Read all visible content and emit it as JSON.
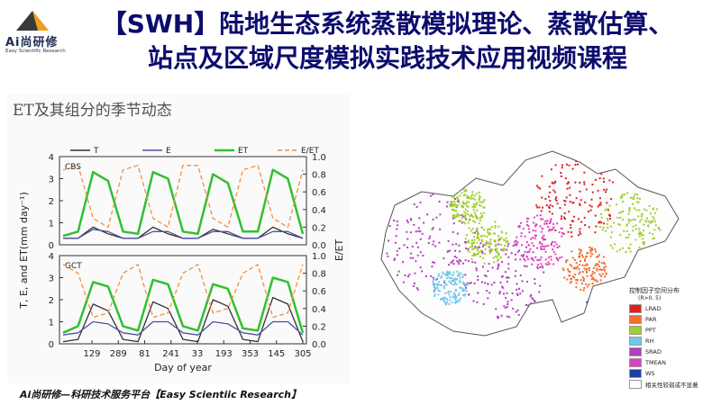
{
  "logo": {
    "brand": "Ai尚研修",
    "subtitle": "Easy Scientific Research"
  },
  "title": {
    "line1": "【SWH】陆地生态系统蒸散模拟理论、蒸散估算、",
    "line2": "站点及区域尺度模拟实践技术应用视频课程"
  },
  "figure_left": {
    "title": "ET及其组分的季节动态",
    "legend": [
      "T",
      "E",
      "ET",
      "E/ET"
    ],
    "panel_labels": [
      "CBS",
      "GCT"
    ],
    "ylabel_left": "T, E, and ET(mm day⁻¹)",
    "ylabel_right": "E/ET",
    "xlabel": "Day of year",
    "x_ticks": [
      "129",
      "289",
      "81",
      "241",
      "33",
      "193",
      "353",
      "145",
      "305"
    ],
    "y_ticks_left": [
      "0",
      "1",
      "2",
      "3",
      "4"
    ],
    "y_ticks_right": [
      "0.0",
      "0.2",
      "0.4",
      "0.6",
      "0.8",
      "1.0"
    ]
  },
  "figure_right": {
    "legend_title": "控制因子空间分布",
    "legend_subtitle": "(R>0. 5)",
    "legend_items": [
      {
        "label": "LRAD",
        "color": "#e02020"
      },
      {
        "label": "PAR",
        "color": "#f07030"
      },
      {
        "label": "PPT",
        "color": "#a0d030"
      },
      {
        "label": "RH",
        "color": "#70c8e8"
      },
      {
        "label": "SRAD",
        "color": "#b040c0"
      },
      {
        "label": "TMEAN",
        "color": "#e040c0"
      },
      {
        "label": "WS",
        "color": "#2040a0"
      },
      {
        "label": "相关性较弱或不显著",
        "color": "#ffffff"
      }
    ]
  },
  "chart_data": {
    "type": "line",
    "title": "ET及其组分的季节动态",
    "xlabel": "Day of year",
    "ylabel": "T, E, and ET(mm day⁻¹)",
    "ylabel_right": "E/ET",
    "ylim": [
      0,
      4
    ],
    "ylim_right": [
      0,
      1.0
    ],
    "x_ticks": [
      "129",
      "289",
      "81",
      "241",
      "33",
      "193",
      "353",
      "145",
      "305"
    ],
    "panels": [
      {
        "name": "CBS",
        "series": [
          {
            "name": "T",
            "values": [
              0.3,
              0.3,
              0.8,
              0.5,
              0.3,
              0.3,
              0.8,
              0.5,
              0.3,
              0.3,
              0.7,
              0.5,
              0.3,
              0.3,
              0.8,
              0.5,
              0.3
            ]
          },
          {
            "name": "E",
            "values": [
              0.3,
              0.3,
              0.7,
              0.6,
              0.3,
              0.3,
              0.6,
              0.6,
              0.3,
              0.3,
              0.6,
              0.6,
              0.3,
              0.3,
              0.6,
              0.6,
              0.3
            ]
          },
          {
            "name": "ET",
            "values": [
              0.4,
              0.6,
              3.3,
              2.9,
              0.6,
              0.5,
              3.3,
              3.0,
              0.6,
              0.5,
              3.2,
              2.8,
              0.6,
              0.6,
              3.4,
              3.0,
              0.5
            ]
          },
          {
            "name": "E/ET",
            "values": [
              0.85,
              0.9,
              0.3,
              0.2,
              0.85,
              0.9,
              0.3,
              0.2,
              0.9,
              0.9,
              0.3,
              0.2,
              0.85,
              0.9,
              0.3,
              0.2,
              0.85
            ]
          }
        ]
      },
      {
        "name": "GCT",
        "series": [
          {
            "name": "T",
            "values": [
              0.1,
              0.2,
              1.8,
              1.5,
              0.2,
              0.1,
              1.9,
              1.6,
              0.2,
              0.1,
              2.0,
              1.7,
              0.2,
              0.1,
              2.1,
              1.8,
              0.1
            ]
          },
          {
            "name": "E",
            "values": [
              0.4,
              0.5,
              1.0,
              0.9,
              0.5,
              0.4,
              1.0,
              1.0,
              0.5,
              0.4,
              1.0,
              0.9,
              0.5,
              0.4,
              1.0,
              1.0,
              0.4
            ]
          },
          {
            "name": "ET",
            "values": [
              0.5,
              0.8,
              2.8,
              2.6,
              0.8,
              0.6,
              2.9,
              2.7,
              0.8,
              0.6,
              2.7,
              2.5,
              0.7,
              0.6,
              3.0,
              2.8,
              0.5
            ]
          },
          {
            "name": "E/ET",
            "values": [
              0.9,
              0.8,
              0.3,
              0.35,
              0.8,
              0.9,
              0.3,
              0.35,
              0.8,
              0.9,
              0.35,
              0.4,
              0.8,
              0.9,
              0.3,
              0.35,
              0.9
            ]
          }
        ]
      }
    ],
    "colors": {
      "T": "#333333",
      "E": "#5050a0",
      "ET": "#30c030",
      "E/ET": "#f09040"
    }
  },
  "footer": "Ai尚研修—科研技术服务平台【Easy Scientiic Research】"
}
